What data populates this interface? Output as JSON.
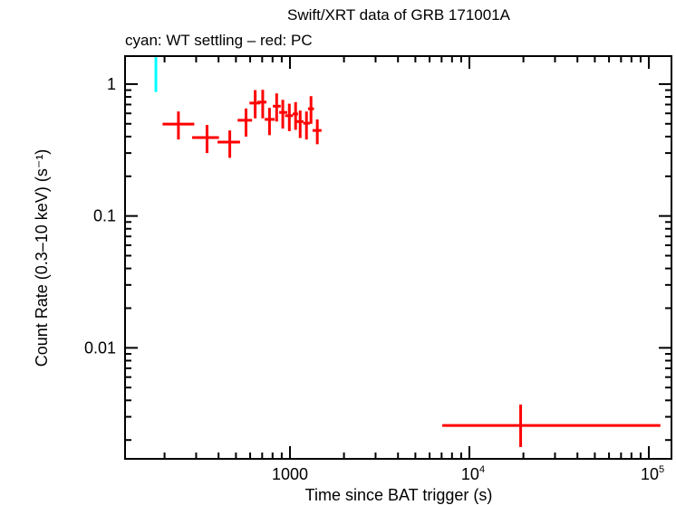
{
  "chart_data": {
    "type": "scatter",
    "title": "Swift/XRT data of GRB 171001A",
    "subtitle": "cyan: WT settling – red: PC",
    "xlabel": "Time since BAT trigger (s)",
    "ylabel": "Count Rate (0.3–10 keV) (s⁻¹)",
    "xscale": "log",
    "yscale": "log",
    "xlim": [
      120.5,
      133700
    ],
    "ylim": [
      0.00144,
      1.63
    ],
    "grid": false,
    "xticks": [
      {
        "value": 1000,
        "base": "1000",
        "exp": ""
      },
      {
        "value": 10000,
        "base": "10",
        "exp": "4"
      },
      {
        "value": 100000,
        "base": "10",
        "exp": "5"
      }
    ],
    "yticks": [
      {
        "value": 1,
        "label": "1"
      },
      {
        "value": 0.1,
        "label": "0.1"
      },
      {
        "value": 0.01,
        "label": "0.01"
      }
    ],
    "series": [
      {
        "name": "WT settling",
        "color": "#00ffff",
        "points": [
          {
            "x": 179,
            "xlo": 177,
            "xhi": 181,
            "y": 1.24,
            "ylo": 0.87,
            "yhi": 1.6
          }
        ]
      },
      {
        "name": "PC",
        "color": "#ff0000",
        "points": [
          {
            "x": 239,
            "xlo": 195,
            "xhi": 293,
            "y": 0.497,
            "ylo": 0.38,
            "yhi": 0.62
          },
          {
            "x": 345,
            "xlo": 285,
            "xhi": 402,
            "y": 0.393,
            "ylo": 0.3,
            "yhi": 0.49
          },
          {
            "x": 462,
            "xlo": 395,
            "xhi": 527,
            "y": 0.363,
            "ylo": 0.276,
            "yhi": 0.445
          },
          {
            "x": 569,
            "xlo": 511,
            "xhi": 615,
            "y": 0.532,
            "ylo": 0.4,
            "yhi": 0.653
          },
          {
            "x": 640,
            "xlo": 595,
            "xhi": 682,
            "y": 0.718,
            "ylo": 0.55,
            "yhi": 0.9
          },
          {
            "x": 705,
            "xlo": 659,
            "xhi": 740,
            "y": 0.73,
            "ylo": 0.55,
            "yhi": 0.905
          },
          {
            "x": 769,
            "xlo": 723,
            "xhi": 822,
            "y": 0.54,
            "ylo": 0.41,
            "yhi": 0.66
          },
          {
            "x": 843,
            "xlo": 803,
            "xhi": 888,
            "y": 0.68,
            "ylo": 0.52,
            "yhi": 0.85
          },
          {
            "x": 912,
            "xlo": 871,
            "xhi": 966,
            "y": 0.61,
            "ylo": 0.46,
            "yhi": 0.76
          },
          {
            "x": 992,
            "xlo": 940,
            "xhi": 1039,
            "y": 0.576,
            "ylo": 0.44,
            "yhi": 0.71
          },
          {
            "x": 1075,
            "xlo": 1035,
            "xhi": 1109,
            "y": 0.594,
            "ylo": 0.45,
            "yhi": 0.73
          },
          {
            "x": 1140,
            "xlo": 1084,
            "xhi": 1189,
            "y": 0.52,
            "ylo": 0.39,
            "yhi": 0.63
          },
          {
            "x": 1236,
            "xlo": 1186,
            "xhi": 1290,
            "y": 0.505,
            "ylo": 0.38,
            "yhi": 0.62
          },
          {
            "x": 1310,
            "xlo": 1260,
            "xhi": 1361,
            "y": 0.65,
            "ylo": 0.5,
            "yhi": 0.81
          },
          {
            "x": 1420,
            "xlo": 1336,
            "xhi": 1500,
            "y": 0.445,
            "ylo": 0.35,
            "yhi": 0.54
          },
          {
            "x": 19300,
            "xlo": 7060,
            "xhi": 116000,
            "y": 0.00258,
            "ylo": 0.00177,
            "yhi": 0.00371
          }
        ]
      }
    ]
  }
}
